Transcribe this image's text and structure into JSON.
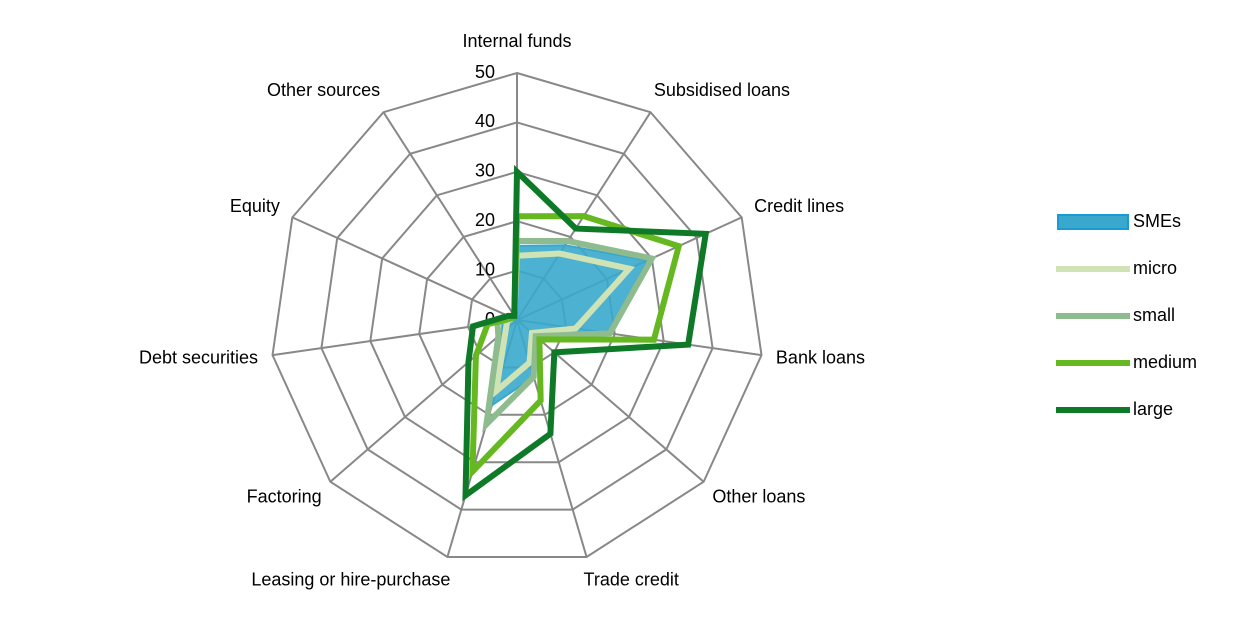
{
  "chart_data": {
    "type": "radar",
    "categories": [
      "Internal funds",
      "Subsidised loans",
      "Credit lines",
      "Bank loans",
      "Other loans",
      "Trade credit",
      "Leasing or hire-purchase",
      "Factoring",
      "Debt securities",
      "Equity",
      "Other sources"
    ],
    "ylim": [
      0,
      50
    ],
    "yticks": [
      0,
      10,
      20,
      30,
      40,
      50
    ],
    "grid": true,
    "legend": "right",
    "series": [
      {
        "name": "SMEs",
        "color": "#3aa8cc",
        "fill": true,
        "values": [
          15,
          18,
          29,
          19,
          5,
          12,
          18,
          4,
          3,
          1,
          1
        ]
      },
      {
        "name": "micro",
        "color": "#cfe3b4",
        "values": [
          13,
          16,
          25,
          12,
          4,
          9,
          15,
          3,
          2,
          1,
          1
        ]
      },
      {
        "name": "small",
        "color": "#8fbc8f",
        "values": [
          16,
          19,
          30,
          19,
          5,
          12,
          22,
          5,
          4,
          1,
          1
        ]
      },
      {
        "name": "medium",
        "color": "#66b821",
        "values": [
          21,
          25,
          36,
          28,
          6,
          17,
          32,
          11,
          6,
          1,
          1
        ]
      },
      {
        "name": "large",
        "color": "#0e7a28",
        "values": [
          30,
          22,
          42,
          35,
          10,
          24,
          37,
          13,
          9,
          2,
          1
        ]
      }
    ]
  }
}
